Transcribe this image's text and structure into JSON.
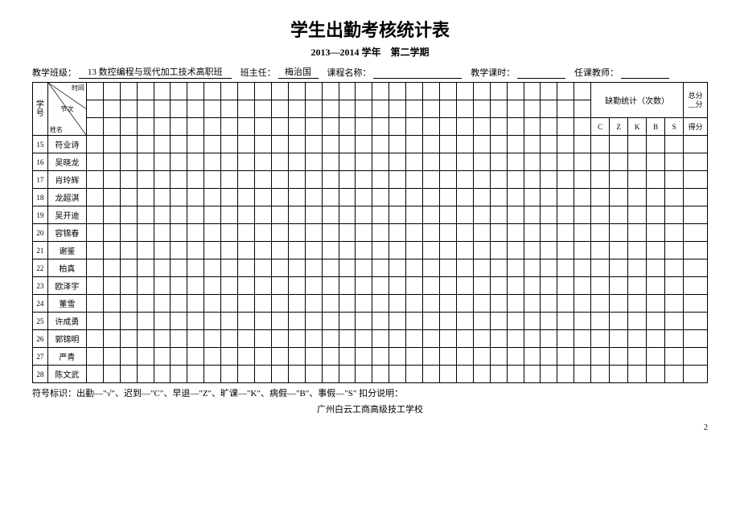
{
  "title": "学生出勤考核统计表",
  "subtitle": "2013—2014 学年　第二学期",
  "info": {
    "class_label": "教学班级：",
    "class_value": "13 数控编程与现代加工技术高职班",
    "head_label": "班主任：",
    "head_value": "梅治国",
    "course_label": "课程名称：",
    "course_value": "",
    "hours_label": "教学课时：",
    "hours_value": "",
    "teacher_label": "任课教师：",
    "teacher_value": ""
  },
  "header": {
    "xuehao": "学号",
    "time": "时间",
    "period": "节次",
    "name": "姓名",
    "absent_stat": "缺勤统计（次数）",
    "total_top": "总分",
    "total_bottom": "__分",
    "stat_cols": [
      "C",
      "Z",
      "K",
      "B",
      "S"
    ],
    "score": "得分"
  },
  "grid_cols": 30,
  "students": [
    {
      "id": "15",
      "name": "符业诗"
    },
    {
      "id": "16",
      "name": "吴晓龙"
    },
    {
      "id": "17",
      "name": "肖玲辉"
    },
    {
      "id": "18",
      "name": "龙超淇"
    },
    {
      "id": "19",
      "name": "吴开迪"
    },
    {
      "id": "20",
      "name": "容锦春"
    },
    {
      "id": "21",
      "name": "谢鉴"
    },
    {
      "id": "22",
      "name": "柏真"
    },
    {
      "id": "23",
      "name": "欧泽宇"
    },
    {
      "id": "24",
      "name": "董雪"
    },
    {
      "id": "25",
      "name": "许成勇"
    },
    {
      "id": "26",
      "name": "郭锦明"
    },
    {
      "id": "27",
      "name": "严青"
    },
    {
      "id": "28",
      "name": "陈文武"
    }
  ],
  "footer_note": "符号标识：出勤—\"√\"、迟到—\"C\"、早退—\"Z\"、旷课—\"K\"、病假—\"B\"、事假—\"S\" 扣分说明：",
  "footer_school": "广州白云工商高级技工学校",
  "page_num": "2"
}
